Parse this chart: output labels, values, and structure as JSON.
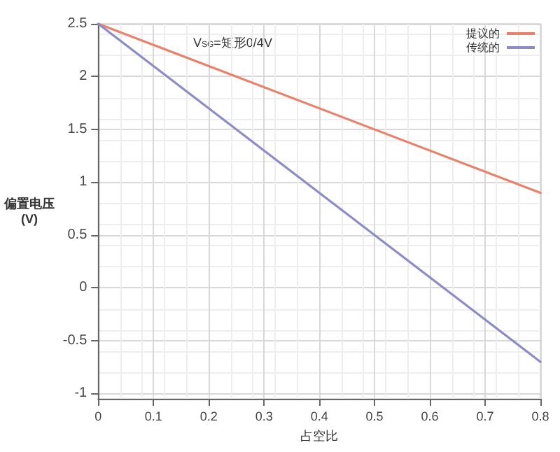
{
  "chart_data": {
    "type": "line",
    "annotations": [
      "V$_{SG}$=矩形0/4V"
    ],
    "xlabel": "占空比",
    "ylabel": "偏置电压\n(V)",
    "x": [
      0,
      0.8
    ],
    "series": [
      {
        "name": "提议的",
        "color": "#e8826a",
        "values": [
          2.5,
          0.9
        ]
      },
      {
        "name": "传统的",
        "color": "#8c8cc8",
        "values": [
          2.5,
          -0.7
        ]
      }
    ],
    "xlim": [
      0,
      0.8
    ],
    "xticks": [
      0,
      0.1,
      0.2,
      0.3,
      0.4,
      0.5,
      0.6,
      0.7,
      0.8
    ],
    "ylim": [
      -1.05,
      2.5
    ],
    "yticks": [
      -1,
      -0.5,
      0,
      0.5,
      1,
      1.5,
      2,
      2.5
    ],
    "grid": true,
    "legend": "top right",
    "marker": "none",
    "line_style": "solid"
  }
}
